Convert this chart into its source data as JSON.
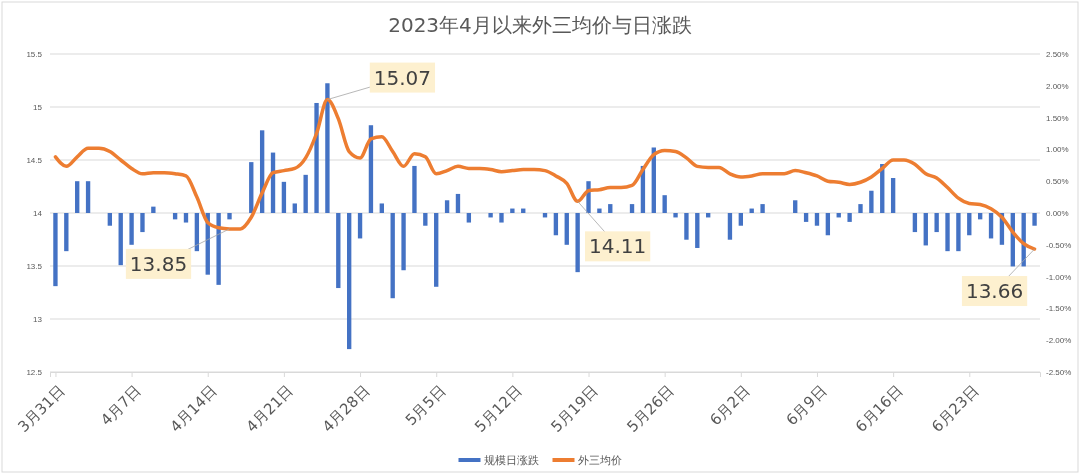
{
  "chart_data": {
    "type": "bar",
    "title": "2023年4月以来外三均价与日涨跌",
    "x": [
      "2023-03-31",
      "2023-04-01",
      "2023-04-02",
      "2023-04-03",
      "2023-04-04",
      "2023-04-05",
      "2023-04-06",
      "2023-04-07",
      "2023-04-08",
      "2023-04-09",
      "2023-04-10",
      "2023-04-11",
      "2023-04-12",
      "2023-04-13",
      "2023-04-14",
      "2023-04-15",
      "2023-04-16",
      "2023-04-17",
      "2023-04-18",
      "2023-04-19",
      "2023-04-20",
      "2023-04-21",
      "2023-04-22",
      "2023-04-23",
      "2023-04-24",
      "2023-04-25",
      "2023-04-26",
      "2023-04-27",
      "2023-04-28",
      "2023-04-29",
      "2023-04-30",
      "2023-05-01",
      "2023-05-02",
      "2023-05-03",
      "2023-05-04",
      "2023-05-05",
      "2023-05-06",
      "2023-05-07",
      "2023-05-08",
      "2023-05-09",
      "2023-05-10",
      "2023-05-11",
      "2023-05-12",
      "2023-05-13",
      "2023-05-14",
      "2023-05-15",
      "2023-05-16",
      "2023-05-17",
      "2023-05-18",
      "2023-05-19",
      "2023-05-20",
      "2023-05-21",
      "2023-05-22",
      "2023-05-23",
      "2023-05-24",
      "2023-05-25",
      "2023-05-26",
      "2023-05-27",
      "2023-05-28",
      "2023-05-29",
      "2023-05-30",
      "2023-05-31",
      "2023-06-01",
      "2023-06-02",
      "2023-06-03",
      "2023-06-04",
      "2023-06-05",
      "2023-06-06",
      "2023-06-07",
      "2023-06-08",
      "2023-06-09",
      "2023-06-10",
      "2023-06-11",
      "2023-06-12",
      "2023-06-13",
      "2023-06-14",
      "2023-06-15",
      "2023-06-16",
      "2023-06-17",
      "2023-06-18",
      "2023-06-19",
      "2023-06-20",
      "2023-06-21",
      "2023-06-22",
      "2023-06-23",
      "2023-06-24",
      "2023-06-25",
      "2023-06-26",
      "2023-06-27",
      "2023-06-28",
      "2023-06-29"
    ],
    "series": [
      {
        "name": "规模日涨跌",
        "axis": "y2",
        "color": "#4472c4",
        "values": [
          -1.15,
          -0.6,
          0.5,
          0.5,
          0,
          -0.2,
          -0.82,
          -0.5,
          -0.3,
          0.1,
          0,
          -0.1,
          -0.15,
          -0.6,
          -0.97,
          -1.13,
          -0.1,
          0,
          0.8,
          1.3,
          0.95,
          0.49,
          0.15,
          0.6,
          1.73,
          2.04,
          -1.18,
          -2.14,
          -0.4,
          1.38,
          0.15,
          -1.34,
          -0.9,
          0.74,
          -0.2,
          -1.16,
          0.2,
          0.3,
          -0.15,
          0,
          -0.07,
          -0.15,
          0.07,
          0.07,
          0,
          -0.07,
          -0.35,
          -0.5,
          -0.93,
          0.5,
          0.07,
          0.14,
          0,
          0.14,
          0.74,
          1.03,
          0.28,
          -0.07,
          -0.42,
          -0.55,
          -0.07,
          0,
          -0.42,
          -0.2,
          0.07,
          0.14,
          0,
          0,
          0.2,
          -0.14,
          -0.2,
          -0.35,
          -0.07,
          -0.14,
          0.14,
          0.35,
          0.77,
          0.55,
          0,
          -0.3,
          -0.51,
          -0.3,
          -0.6,
          -0.6,
          -0.35,
          -0.1,
          -0.4,
          -0.5,
          -0.84,
          -0.84,
          -0.2
        ]
      },
      {
        "name": "外三均价",
        "type": "line",
        "color": "#ed7d31",
        "values": [
          14.53,
          14.44,
          14.53,
          14.61,
          14.61,
          14.58,
          14.5,
          14.42,
          14.37,
          14.38,
          14.38,
          14.37,
          14.35,
          14.15,
          13.91,
          13.86,
          13.85,
          13.85,
          13.96,
          14.19,
          14.38,
          14.4,
          14.42,
          14.52,
          14.75,
          15.07,
          14.89,
          14.58,
          14.52,
          14.7,
          14.72,
          14.58,
          14.44,
          14.56,
          14.53,
          14.37,
          14.4,
          14.44,
          14.42,
          14.42,
          14.41,
          14.39,
          14.4,
          14.41,
          14.41,
          14.4,
          14.35,
          14.28,
          14.11,
          14.21,
          14.22,
          14.24,
          14.24,
          14.26,
          14.41,
          14.55,
          14.59,
          14.58,
          14.52,
          14.44,
          14.43,
          14.43,
          14.37,
          14.34,
          14.35,
          14.37,
          14.37,
          14.37,
          14.4,
          14.38,
          14.35,
          14.3,
          14.29,
          14.27,
          14.29,
          14.34,
          14.42,
          14.5,
          14.5,
          14.46,
          14.37,
          14.33,
          14.24,
          14.14,
          14.09,
          14.08,
          14.04,
          13.96,
          13.82,
          13.71,
          13.66
        ]
      }
    ],
    "xlim": [
      "2023-03-30T12:00",
      "2023-06-29T12:00"
    ],
    "xticks": [
      {
        "value": "2023-03-31",
        "label": "3月31日"
      },
      {
        "value": "2023-04-07",
        "label": "4月7日"
      },
      {
        "value": "2023-04-14",
        "label": "4月14日"
      },
      {
        "value": "2023-04-21",
        "label": "4月21日"
      },
      {
        "value": "2023-04-28",
        "label": "4月28日"
      },
      {
        "value": "2023-05-05",
        "label": "5月5日"
      },
      {
        "value": "2023-05-12",
        "label": "5月12日"
      },
      {
        "value": "2023-05-19",
        "label": "5月19日"
      },
      {
        "value": "2023-05-26",
        "label": "5月26日"
      },
      {
        "value": "2023-06-02",
        "label": "6月2日"
      },
      {
        "value": "2023-06-09",
        "label": "6月9日"
      },
      {
        "value": "2023-06-16",
        "label": "6月16日"
      },
      {
        "value": "2023-06-23",
        "label": "6月23日"
      }
    ],
    "ylim": [
      12.5,
      15.5
    ],
    "yticks": [
      12.5,
      13,
      13.5,
      14,
      14.5,
      15,
      15.5
    ],
    "y2lim": [
      -2.5,
      2.5
    ],
    "y2ticks": [
      {
        "value": -2.5,
        "label": "-2.50%"
      },
      {
        "value": -2,
        "label": "-2.00%"
      },
      {
        "value": -1.5,
        "label": "-1.50%"
      },
      {
        "value": -1,
        "label": "-1.00%"
      },
      {
        "value": -0.5,
        "label": "-0.50%"
      },
      {
        "value": 0,
        "label": "0.00%"
      },
      {
        "value": 0.5,
        "label": "0.50%"
      },
      {
        "value": 1,
        "label": "1.00%"
      },
      {
        "value": 1.5,
        "label": "1.50%"
      },
      {
        "value": 2,
        "label": "2.00%"
      },
      {
        "value": 2.5,
        "label": "2.50%"
      }
    ],
    "annotations": [
      {
        "text": "13.85",
        "x": "2023-04-16",
        "y": 13.85
      },
      {
        "text": "15.07",
        "x": "2023-04-25",
        "y": 15.07
      },
      {
        "text": "14.11",
        "x": "2023-05-18",
        "y": 14.11
      },
      {
        "text": "13.66",
        "x": "2023-06-29",
        "y": 13.66
      }
    ],
    "grid": "y",
    "legend": "bottom"
  }
}
